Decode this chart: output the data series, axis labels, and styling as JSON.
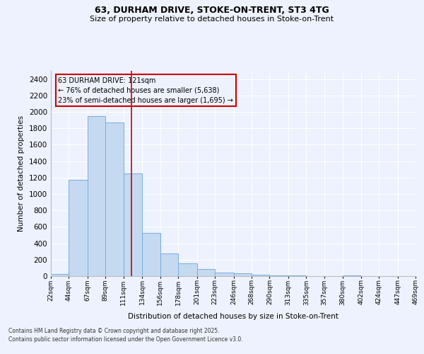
{
  "title1": "63, DURHAM DRIVE, STOKE-ON-TRENT, ST3 4TG",
  "title2": "Size of property relative to detached houses in Stoke-on-Trent",
  "xlabel": "Distribution of detached houses by size in Stoke-on-Trent",
  "ylabel": "Number of detached properties",
  "bin_labels": [
    "22sqm",
    "44sqm",
    "67sqm",
    "89sqm",
    "111sqm",
    "134sqm",
    "156sqm",
    "178sqm",
    "201sqm",
    "223sqm",
    "246sqm",
    "268sqm",
    "290sqm",
    "313sqm",
    "335sqm",
    "357sqm",
    "380sqm",
    "402sqm",
    "424sqm",
    "447sqm",
    "469sqm"
  ],
  "bin_edges": [
    22,
    44,
    67,
    89,
    111,
    134,
    156,
    178,
    201,
    223,
    246,
    268,
    290,
    313,
    335,
    357,
    380,
    402,
    424,
    447,
    469
  ],
  "bar_heights": [
    25,
    1175,
    1950,
    1875,
    1250,
    525,
    275,
    155,
    90,
    45,
    35,
    20,
    10,
    5,
    2,
    2,
    5,
    2,
    2,
    1
  ],
  "bar_color": "#c5d9f1",
  "bar_edge_color": "#7aadde",
  "vline_x": 121,
  "vline_color": "#cc0000",
  "annotation_text": "63 DURHAM DRIVE: 121sqm\n← 76% of detached houses are smaller (5,638)\n23% of semi-detached houses are larger (1,695) →",
  "ylim": [
    0,
    2500
  ],
  "yticks": [
    0,
    200,
    400,
    600,
    800,
    1000,
    1200,
    1400,
    1600,
    1800,
    2000,
    2200,
    2400
  ],
  "bg_color": "#eef2ff",
  "grid_color": "#ffffff",
  "footer1": "Contains HM Land Registry data © Crown copyright and database right 2025.",
  "footer2": "Contains public sector information licensed under the Open Government Licence v3.0."
}
